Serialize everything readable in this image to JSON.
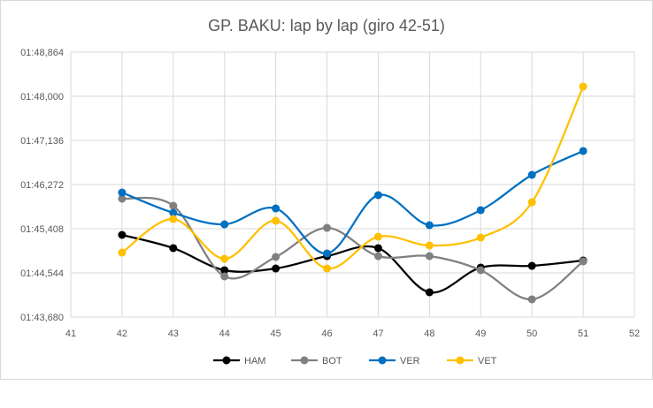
{
  "chart_data": {
    "type": "line",
    "title": "GP. BAKU: lap by lap (giro 42-51)",
    "xlabel": "",
    "ylabel": "",
    "x": [
      42,
      43,
      44,
      45,
      46,
      47,
      48,
      49,
      50,
      51
    ],
    "xlim": [
      41,
      52
    ],
    "xticks": [
      "41",
      "42",
      "43",
      "44",
      "45",
      "46",
      "47",
      "48",
      "49",
      "50",
      "51",
      "52"
    ],
    "ylim": [
      103.68,
      108.864
    ],
    "yticks": [
      "01:43,680",
      "01:44,544",
      "01:45,408",
      "01:46,272",
      "01:47,136",
      "01:48,000",
      "01:48,864"
    ],
    "y_unit": "seconds (mm:ss,ms)",
    "grid": true,
    "legend_position": "bottom",
    "series": [
      {
        "name": "HAM",
        "color": "#000000",
        "values": [
          105.287,
          105.028,
          104.596,
          104.63,
          104.872,
          105.028,
          104.164,
          104.648,
          104.682,
          104.786
        ]
      },
      {
        "name": "BOT",
        "color": "#808080",
        "values": [
          105.996,
          105.857,
          104.475,
          104.855,
          105.425,
          104.872,
          104.872,
          104.596,
          104.026,
          104.769
        ]
      },
      {
        "name": "VER",
        "color": "#0070C0",
        "values": [
          106.116,
          105.719,
          105.494,
          105.805,
          104.924,
          106.065,
          105.477,
          105.771,
          106.462,
          106.929
        ]
      },
      {
        "name": "VET",
        "color": "#FFC000",
        "values": [
          104.941,
          105.598,
          104.82,
          105.564,
          104.63,
          105.252,
          105.08,
          105.235,
          105.926,
          108.19
        ]
      }
    ]
  }
}
